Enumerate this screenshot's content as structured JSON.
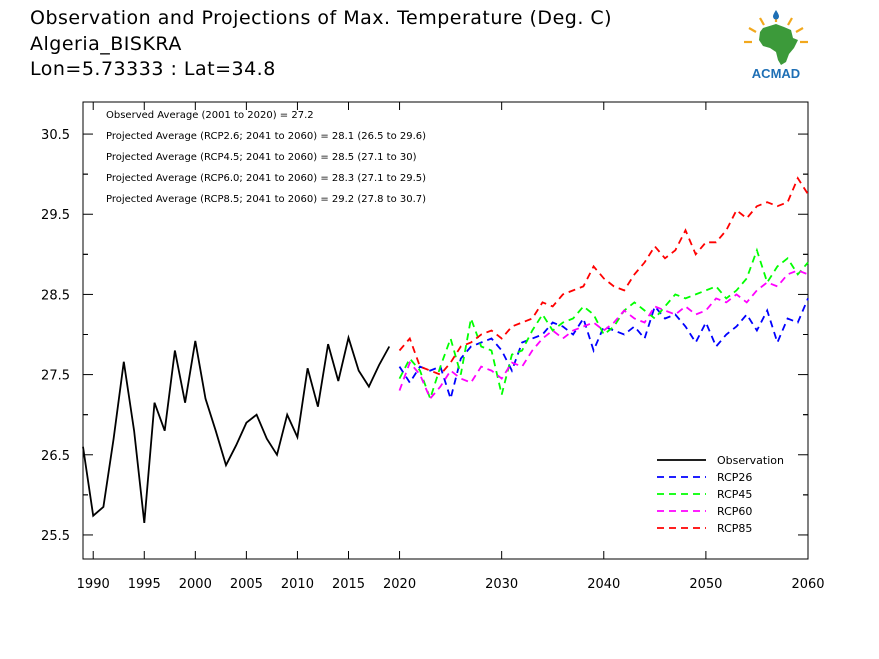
{
  "header": {
    "title": "Observation and Projections of Max. Temperature (Deg. C)",
    "station": "Algeria_BISKRA",
    "coords": "Lon=5.73333 : Lat=34.8"
  },
  "logo": {
    "text": "ACMAD"
  },
  "chart_data": {
    "type": "line",
    "xlim": [
      1989,
      2060
    ],
    "ylim": [
      25.2,
      30.9
    ],
    "x_ticks": [
      1990,
      1995,
      2000,
      2005,
      2010,
      2015,
      2020,
      2030,
      2040,
      2050,
      2060
    ],
    "y_ticks": [
      25.5,
      26.5,
      27.5,
      28.5,
      29.5,
      30.5
    ],
    "annotations": [
      "Observed Average (2001 to 2020) = 27.2",
      "Projected Average (RCP2.6; 2041 to 2060) = 28.1 (26.5 to 29.6)",
      "Projected Average (RCP4.5; 2041 to 2060) = 28.5 (27.1 to 30)",
      "Projected Average (RCP6.0; 2041 to 2060) = 28.3 (27.1 to 29.5)",
      "Projected Average (RCP8.5; 2041 to 2060) = 29.2 (27.8 to 30.7)"
    ],
    "legend_position": "bottom-right",
    "series": [
      {
        "name": "Observation",
        "color": "#000000",
        "dash": false,
        "x": [
          1989,
          1990,
          1991,
          1992,
          1993,
          1994,
          1995,
          1996,
          1997,
          1998,
          1999,
          2000,
          2001,
          2002,
          2003,
          2004,
          2005,
          2006,
          2007,
          2008,
          2009,
          2010,
          2011,
          2012,
          2013,
          2014,
          2015,
          2016,
          2017,
          2018,
          2019
        ],
        "y": [
          26.6,
          25.74,
          25.85,
          26.7,
          27.66,
          26.8,
          25.65,
          27.15,
          26.8,
          27.8,
          27.15,
          27.92,
          27.2,
          26.8,
          26.37,
          26.62,
          26.9,
          27.0,
          26.7,
          26.5,
          27.0,
          26.72,
          27.58,
          27.1,
          27.88,
          27.42,
          27.96,
          27.55,
          27.35,
          27.62,
          27.85
        ]
      },
      {
        "name": "RCP26",
        "color": "#0000ff",
        "dash": true,
        "x": [
          2020,
          2021,
          2022,
          2023,
          2024,
          2025,
          2026,
          2027,
          2028,
          2029,
          2030,
          2031,
          2032,
          2033,
          2034,
          2035,
          2036,
          2037,
          2038,
          2039,
          2040,
          2041,
          2042,
          2043,
          2044,
          2045,
          2046,
          2047,
          2048,
          2049,
          2050,
          2051,
          2052,
          2053,
          2054,
          2055,
          2056,
          2057,
          2058,
          2059,
          2060
        ],
        "y": [
          27.6,
          27.4,
          27.6,
          27.55,
          27.6,
          27.2,
          27.7,
          27.85,
          27.9,
          27.95,
          27.8,
          27.55,
          27.9,
          27.95,
          28.0,
          28.15,
          28.1,
          28.0,
          28.2,
          27.8,
          28.1,
          28.05,
          28.0,
          28.1,
          27.95,
          28.35,
          28.2,
          28.25,
          28.1,
          27.9,
          28.15,
          27.85,
          28.0,
          28.1,
          28.25,
          28.05,
          28.3,
          27.9,
          28.2,
          28.15,
          28.45
        ]
      },
      {
        "name": "RCP45",
        "color": "#00ff00",
        "dash": true,
        "x": [
          2020,
          2021,
          2022,
          2023,
          2024,
          2025,
          2026,
          2027,
          2028,
          2029,
          2030,
          2031,
          2032,
          2033,
          2034,
          2035,
          2036,
          2037,
          2038,
          2039,
          2040,
          2041,
          2042,
          2043,
          2044,
          2045,
          2046,
          2047,
          2048,
          2049,
          2050,
          2051,
          2052,
          2053,
          2054,
          2055,
          2056,
          2057,
          2058,
          2059,
          2060
        ],
        "y": [
          27.45,
          27.7,
          27.55,
          27.2,
          27.6,
          27.95,
          27.5,
          28.2,
          27.85,
          27.8,
          27.25,
          27.75,
          27.8,
          28.05,
          28.25,
          28.05,
          28.15,
          28.2,
          28.35,
          28.25,
          28.0,
          28.1,
          28.3,
          28.4,
          28.3,
          28.2,
          28.35,
          28.5,
          28.45,
          28.5,
          28.55,
          28.6,
          28.45,
          28.55,
          28.7,
          29.05,
          28.65,
          28.85,
          28.95,
          28.75,
          28.9
        ]
      },
      {
        "name": "RCP60",
        "color": "#ff00ff",
        "dash": true,
        "x": [
          2020,
          2021,
          2022,
          2023,
          2024,
          2025,
          2026,
          2027,
          2028,
          2029,
          2030,
          2031,
          2032,
          2033,
          2034,
          2035,
          2036,
          2037,
          2038,
          2039,
          2040,
          2041,
          2042,
          2043,
          2044,
          2045,
          2046,
          2047,
          2048,
          2049,
          2050,
          2051,
          2052,
          2053,
          2054,
          2055,
          2056,
          2057,
          2058,
          2059,
          2060
        ],
        "y": [
          27.3,
          27.65,
          27.5,
          27.2,
          27.35,
          27.55,
          27.45,
          27.4,
          27.6,
          27.55,
          27.45,
          27.65,
          27.6,
          27.8,
          27.95,
          28.05,
          27.95,
          28.05,
          28.1,
          28.15,
          28.05,
          28.15,
          28.3,
          28.2,
          28.15,
          28.35,
          28.3,
          28.25,
          28.35,
          28.25,
          28.3,
          28.45,
          28.4,
          28.5,
          28.4,
          28.55,
          28.65,
          28.6,
          28.75,
          28.8,
          28.75
        ]
      },
      {
        "name": "RCP85",
        "color": "#ff0000",
        "dash": true,
        "x": [
          2020,
          2021,
          2022,
          2023,
          2024,
          2025,
          2026,
          2027,
          2028,
          2029,
          2030,
          2031,
          2032,
          2033,
          2034,
          2035,
          2036,
          2037,
          2038,
          2039,
          2040,
          2041,
          2042,
          2043,
          2044,
          2045,
          2046,
          2047,
          2048,
          2049,
          2050,
          2051,
          2052,
          2053,
          2054,
          2055,
          2056,
          2057,
          2058,
          2059,
          2060
        ],
        "y": [
          27.8,
          27.95,
          27.6,
          27.55,
          27.5,
          27.65,
          27.85,
          27.9,
          28.0,
          28.05,
          27.95,
          28.1,
          28.15,
          28.2,
          28.4,
          28.35,
          28.5,
          28.55,
          28.6,
          28.85,
          28.7,
          28.6,
          28.55,
          28.75,
          28.9,
          29.1,
          28.95,
          29.05,
          29.3,
          29.0,
          29.15,
          29.15,
          29.3,
          29.55,
          29.45,
          29.6,
          29.65,
          29.6,
          29.65,
          29.95,
          29.75
        ]
      }
    ]
  }
}
